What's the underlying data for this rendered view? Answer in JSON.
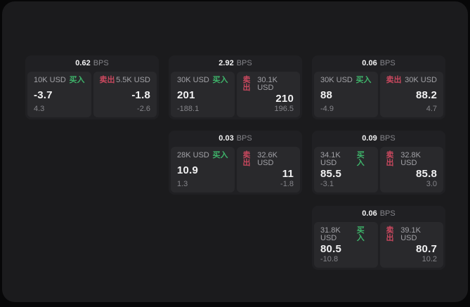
{
  "theme": {
    "background": "#070708",
    "panel_bg": "#1b1b1d",
    "card_bg": "#202023",
    "tile_bg": "#29292c",
    "text_primary": "#f2f2f3",
    "text_secondary": "#a2a2a7",
    "text_muted": "#85858a",
    "buy_green": "#3eb36a",
    "sell_red": "#c9485e"
  },
  "cards": [
    {
      "bps_value": "0.62",
      "bps_unit": "BPS",
      "buy": {
        "amount": "10K USD",
        "label": "买入",
        "price": "-3.7",
        "change": "4.3"
      },
      "sell": {
        "label": "卖出",
        "amount": "5.5K USD",
        "price": "-1.8",
        "change": "-2.6"
      }
    },
    {
      "bps_value": "2.92",
      "bps_unit": "BPS",
      "buy": {
        "amount": "30K USD",
        "label": "买入",
        "price": "201",
        "change": "-188.1"
      },
      "sell": {
        "label": "卖出",
        "amount": "30.1K USD",
        "price": "210",
        "change": "196.5"
      }
    },
    {
      "bps_value": "0.06",
      "bps_unit": "BPS",
      "buy": {
        "amount": "30K USD",
        "label": "买入",
        "price": "88",
        "change": "-4.9"
      },
      "sell": {
        "label": "卖出",
        "amount": "30K USD",
        "price": "88.2",
        "change": "4.7"
      }
    },
    {
      "bps_value": "0.03",
      "bps_unit": "BPS",
      "buy": {
        "amount": "28K USD",
        "label": "买入",
        "price": "10.9",
        "change": "1.3"
      },
      "sell": {
        "label": "卖出",
        "amount": "32.6K USD",
        "price": "11",
        "change": "-1.8"
      }
    },
    {
      "bps_value": "0.09",
      "bps_unit": "BPS",
      "buy": {
        "amount": "34.1K USD",
        "label": "买入",
        "price": "85.5",
        "change": "-3.1"
      },
      "sell": {
        "label": "卖出",
        "amount": "32.8K USD",
        "price": "85.8",
        "change": "3.0"
      }
    },
    {
      "bps_value": "0.06",
      "bps_unit": "BPS",
      "buy": {
        "amount": "31.8K USD",
        "label": "买入",
        "price": "80.5",
        "change": "-10.8"
      },
      "sell": {
        "label": "卖出",
        "amount": "39.1K USD",
        "price": "80.7",
        "change": "10.2"
      }
    }
  ]
}
